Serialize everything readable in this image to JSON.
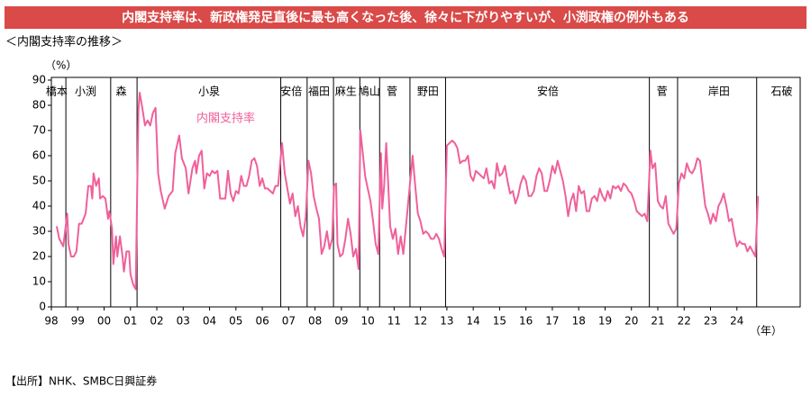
{
  "chart_data": {
    "type": "line",
    "title": "内閣支持率は、新政権発足直後に最も高くなった後、徐々に下がりやすいが、小渕政権の例外もある",
    "subtitle": "＜内閣支持率の推移＞",
    "y_unit": "（%）",
    "x_unit": "（年）",
    "source": "【出所】NHK、SMBC日興証券",
    "xlim": [
      1998,
      2026.4
    ],
    "ylim": [
      0,
      90
    ],
    "yticks": [
      0,
      10,
      20,
      30,
      40,
      50,
      60,
      70,
      80,
      90
    ],
    "xticks": [
      {
        "value": 1998,
        "label": "98"
      },
      {
        "value": 1999,
        "label": "99"
      },
      {
        "value": 2000,
        "label": "00"
      },
      {
        "value": 2001,
        "label": "01"
      },
      {
        "value": 2002,
        "label": "02"
      },
      {
        "value": 2003,
        "label": "03"
      },
      {
        "value": 2004,
        "label": "04"
      },
      {
        "value": 2005,
        "label": "05"
      },
      {
        "value": 2006,
        "label": "06"
      },
      {
        "value": 2007,
        "label": "07"
      },
      {
        "value": 2008,
        "label": "08"
      },
      {
        "value": 2009,
        "label": "09"
      },
      {
        "value": 2010,
        "label": "10"
      },
      {
        "value": 2011,
        "label": "11"
      },
      {
        "value": 2012,
        "label": "12"
      },
      {
        "value": 2013,
        "label": "13"
      },
      {
        "value": 2014,
        "label": "14"
      },
      {
        "value": 2015,
        "label": "15"
      },
      {
        "value": 2016,
        "label": "16"
      },
      {
        "value": 2017,
        "label": "17"
      },
      {
        "value": 2018,
        "label": "18"
      },
      {
        "value": 2019,
        "label": "19"
      },
      {
        "value": 2020,
        "label": "20"
      },
      {
        "value": 2021,
        "label": "21"
      },
      {
        "value": 2022,
        "label": "22"
      },
      {
        "value": 2023,
        "label": "23"
      },
      {
        "value": 2024,
        "label": "24"
      }
    ],
    "era_boundaries": [
      1998.55,
      2000.25,
      2001.25,
      2006.7,
      2007.7,
      2008.7,
      2009.7,
      2010.45,
      2011.6,
      2012.95,
      2020.68,
      2021.75,
      2024.75
    ],
    "eras": [
      {
        "label": "橋本",
        "x": 1998.2
      },
      {
        "label": "小渕",
        "x": 1999.3
      },
      {
        "label": "森",
        "x": 2000.65
      },
      {
        "label": "小泉",
        "x": 2003.98
      },
      {
        "label": "安倍",
        "x": 2007.1
      },
      {
        "label": "福田",
        "x": 2008.15
      },
      {
        "label": "麻生",
        "x": 2009.17
      },
      {
        "label": "鳩山",
        "x": 2010.06
      },
      {
        "label": "菅",
        "x": 2010.92
      },
      {
        "label": "野田",
        "x": 2012.28
      },
      {
        "label": "安倍",
        "x": 2016.83
      },
      {
        "label": "菅",
        "x": 2021.16
      },
      {
        "label": "岸田",
        "x": 2023.32
      },
      {
        "label": "石破",
        "x": 2025.7
      }
    ],
    "grid": false,
    "series": [
      {
        "name": "内閣支持率",
        "color": "#f0609a",
        "x": [
          1998.2,
          1998.3,
          1998.45,
          1998.6,
          1998.65,
          1998.75,
          1998.85,
          1998.95,
          1999.05,
          1999.15,
          1999.3,
          1999.4,
          1999.5,
          1999.55,
          1999.6,
          1999.7,
          1999.8,
          1999.85,
          1999.95,
          2000.05,
          2000.15,
          2000.2,
          2000.3,
          2000.35,
          2000.45,
          2000.5,
          2000.6,
          2000.7,
          2000.75,
          2000.85,
          2000.95,
          2001.0,
          2001.1,
          2001.2,
          2001.3,
          2001.35,
          2001.45,
          2001.55,
          2001.65,
          2001.75,
          2001.85,
          2001.95,
          2002.05,
          2002.15,
          2002.3,
          2002.45,
          2002.6,
          2002.7,
          2002.85,
          2002.95,
          2003.1,
          2003.2,
          2003.35,
          2003.45,
          2003.5,
          2003.6,
          2003.7,
          2003.8,
          2003.9,
          2004.0,
          2004.1,
          2004.2,
          2004.3,
          2004.4,
          2004.5,
          2004.6,
          2004.7,
          2004.8,
          2004.9,
          2005.0,
          2005.1,
          2005.2,
          2005.3,
          2005.4,
          2005.5,
          2005.6,
          2005.7,
          2005.8,
          2005.9,
          2006.0,
          2006.1,
          2006.2,
          2006.4,
          2006.5,
          2006.6,
          2006.75,
          2006.85,
          2006.95,
          2007.05,
          2007.15,
          2007.25,
          2007.35,
          2007.45,
          2007.55,
          2007.65,
          2007.75,
          2007.85,
          2007.95,
          2008.05,
          2008.15,
          2008.25,
          2008.35,
          2008.45,
          2008.55,
          2008.65,
          2008.72,
          2008.8,
          2008.85,
          2008.95,
          2009.05,
          2009.15,
          2009.25,
          2009.35,
          2009.45,
          2009.55,
          2009.65,
          2009.72,
          2009.8,
          2009.9,
          2010.0,
          2010.1,
          2010.2,
          2010.3,
          2010.4,
          2010.5,
          2010.55,
          2010.62,
          2010.7,
          2010.78,
          2010.85,
          2010.95,
          2011.05,
          2011.15,
          2011.25,
          2011.35,
          2011.7,
          2011.8,
          2011.9,
          2012.0,
          2012.1,
          2012.2,
          2012.3,
          2012.4,
          2012.5,
          2012.6,
          2012.7,
          2012.8,
          2012.9,
          2013.0,
          2013.1,
          2013.2,
          2013.3,
          2013.4,
          2013.5,
          2013.6,
          2013.7,
          2013.8,
          2013.9,
          2014.0,
          2014.1,
          2014.2,
          2014.3,
          2014.4,
          2014.5,
          2014.6,
          2014.7,
          2014.8,
          2014.9,
          2015.0,
          2015.1,
          2015.2,
          2015.3,
          2015.4,
          2015.5,
          2015.6,
          2015.7,
          2015.8,
          2015.9,
          2016.0,
          2016.1,
          2016.2,
          2016.3,
          2016.4,
          2016.5,
          2016.6,
          2016.7,
          2016.8,
          2016.9,
          2017.0,
          2017.1,
          2017.2,
          2017.3,
          2017.4,
          2017.5,
          2017.6,
          2017.7,
          2017.8,
          2017.9,
          2018.0,
          2018.1,
          2018.2,
          2018.3,
          2018.4,
          2018.5,
          2018.6,
          2018.7,
          2018.8,
          2018.9,
          2019.0,
          2019.1,
          2019.2,
          2019.3,
          2019.4,
          2019.5,
          2019.6,
          2019.7,
          2019.8,
          2019.9,
          2020.0,
          2020.1,
          2020.2,
          2020.3,
          2020.4,
          2020.5,
          2020.6,
          2020.72,
          2020.8,
          2020.9,
          2021.0,
          2021.1,
          2021.2,
          2021.3,
          2021.4,
          2021.5,
          2021.6,
          2021.7,
          2021.8,
          2021.9,
          2022.0,
          2022.1,
          2022.2,
          2022.3,
          2022.4,
          2022.5,
          2022.6,
          2022.7,
          2022.8,
          2022.9,
          2023.0,
          2023.1,
          2023.2,
          2023.3,
          2023.4,
          2023.5,
          2023.6,
          2023.7,
          2023.8,
          2023.9,
          2024.0,
          2024.1,
          2024.2,
          2024.3,
          2024.4,
          2024.5,
          2024.6,
          2024.7,
          2024.8
        ],
        "values": [
          32,
          27,
          24,
          37,
          25,
          20,
          20,
          22,
          33,
          33,
          37,
          48,
          48,
          43,
          53,
          48,
          51,
          43,
          44,
          43,
          35,
          38,
          31,
          17,
          28,
          20,
          28,
          20,
          14,
          22,
          22,
          13,
          9,
          7,
          78,
          85,
          79,
          72,
          74,
          72,
          77,
          79,
          53,
          46,
          39,
          44,
          46,
          61,
          68,
          59,
          55,
          45,
          55,
          58,
          53,
          60,
          62,
          47,
          53,
          52,
          54,
          53,
          54,
          43,
          43,
          43,
          54,
          45,
          42,
          46,
          45,
          52,
          48,
          48,
          52,
          58,
          59,
          56,
          48,
          51,
          47,
          47,
          45,
          48,
          48,
          65,
          53,
          47,
          41,
          45,
          36,
          40,
          32,
          28,
          36,
          58,
          53,
          44,
          39,
          35,
          21,
          24,
          30,
          23,
          27,
          48,
          49,
          25,
          20,
          21,
          27,
          35,
          29,
          20,
          23,
          15,
          70,
          62,
          52,
          47,
          42,
          34,
          25,
          21,
          61,
          39,
          48,
          65,
          48,
          32,
          27,
          31,
          21,
          28,
          21,
          60,
          48,
          37,
          34,
          29,
          30,
          29,
          27,
          27,
          29,
          27,
          23,
          20,
          64,
          65,
          66,
          65,
          63,
          57,
          58,
          58,
          60,
          52,
          50,
          54,
          53,
          52,
          51,
          55,
          49,
          50,
          47,
          57,
          52,
          53,
          56,
          50,
          45,
          46,
          41,
          44,
          49,
          52,
          50,
          44,
          44,
          46,
          52,
          55,
          53,
          46,
          46,
          50,
          56,
          53,
          58,
          54,
          50,
          44,
          36,
          42,
          45,
          38,
          48,
          45,
          46,
          38,
          38,
          43,
          44,
          42,
          47,
          44,
          42,
          46,
          43,
          48,
          47,
          48,
          46,
          49,
          48,
          46,
          45,
          42,
          38,
          37,
          36,
          37,
          34,
          62,
          55,
          57,
          42,
          40,
          39,
          44,
          33,
          31,
          29,
          31,
          49,
          53,
          51,
          57,
          54,
          53,
          55,
          59,
          58,
          49,
          40,
          37,
          33,
          37,
          34,
          40,
          42,
          45,
          40,
          34,
          35,
          29,
          24,
          26,
          25,
          25,
          22,
          24,
          22,
          20,
          44
        ]
      }
    ]
  }
}
